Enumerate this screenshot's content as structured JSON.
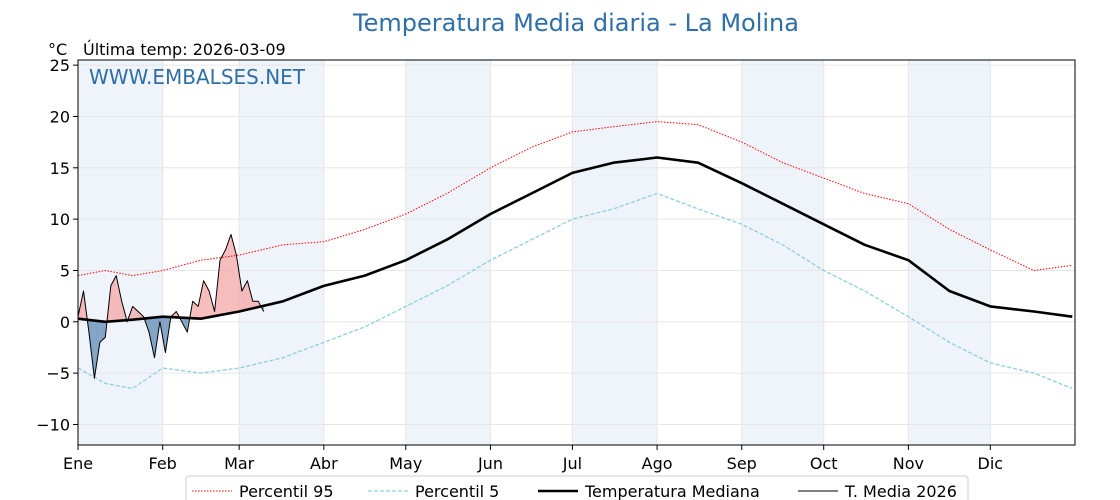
{
  "chart_data": {
    "type": "line",
    "title": "Temperatura Media diaria - La Molina",
    "unit_label": "°C",
    "last_temp_label": "Última temp: 2026-03-09",
    "watermark": "WWW.EMBALSES.NET",
    "ylim": [
      -12,
      25.5
    ],
    "yticks": [
      -10,
      -5,
      0,
      5,
      10,
      15,
      20,
      25
    ],
    "ytick_labels": [
      "−10",
      "−5",
      "0",
      "5",
      "10",
      "15",
      "20",
      "25"
    ],
    "xlim": [
      0,
      365
    ],
    "month_starts": [
      0,
      31,
      59,
      90,
      120,
      151,
      181,
      212,
      243,
      273,
      304,
      334
    ],
    "month_labels": [
      "Ene",
      "Feb",
      "Mar",
      "Abr",
      "May",
      "Jun",
      "Jul",
      "Ago",
      "Sep",
      "Oct",
      "Nov",
      "Dic"
    ],
    "shaded_months": [
      0,
      2,
      4,
      6,
      8,
      10
    ],
    "grid": true,
    "legend": {
      "placement": "bottom-center"
    },
    "series": [
      {
        "name": "Percentil 95",
        "color": "#ff0000",
        "style": "dotted",
        "x": [
          0,
          10,
          20,
          31,
          45,
          59,
          75,
          90,
          105,
          120,
          135,
          151,
          166,
          181,
          196,
          212,
          227,
          243,
          258,
          273,
          288,
          304,
          319,
          334,
          350,
          364
        ],
        "y": [
          4.5,
          5.0,
          4.5,
          5.0,
          6.0,
          6.5,
          7.5,
          7.8,
          9.0,
          10.5,
          12.5,
          15.0,
          17.0,
          18.5,
          19.0,
          19.5,
          19.2,
          17.5,
          15.5,
          14.0,
          12.5,
          11.5,
          9.0,
          7.0,
          5.0,
          5.5
        ]
      },
      {
        "name": "Percentil 5",
        "color": "#8fcde0",
        "style": "dashed",
        "x": [
          0,
          10,
          20,
          31,
          45,
          59,
          75,
          90,
          105,
          120,
          135,
          151,
          166,
          181,
          196,
          212,
          227,
          243,
          258,
          273,
          288,
          304,
          319,
          334,
          350,
          364
        ],
        "y": [
          -4.5,
          -6.0,
          -6.5,
          -4.5,
          -5.0,
          -4.5,
          -3.5,
          -2.0,
          -0.5,
          1.5,
          3.5,
          6.0,
          8.0,
          10.0,
          11.0,
          12.5,
          11.0,
          9.5,
          7.5,
          5.0,
          3.0,
          0.5,
          -2.0,
          -4.0,
          -5.0,
          -6.5
        ]
      },
      {
        "name": "Temperatura Mediana",
        "color": "#000000",
        "style": "solid-thick",
        "x": [
          0,
          10,
          20,
          31,
          45,
          59,
          75,
          90,
          105,
          120,
          135,
          151,
          166,
          181,
          196,
          212,
          227,
          243,
          258,
          273,
          288,
          304,
          319,
          334,
          350,
          364
        ],
        "y": [
          0.3,
          0.0,
          0.2,
          0.5,
          0.3,
          1.0,
          2.0,
          3.5,
          4.5,
          6.0,
          8.0,
          10.5,
          12.5,
          14.5,
          15.5,
          16.0,
          15.5,
          13.5,
          11.5,
          9.5,
          7.5,
          6.0,
          3.0,
          1.5,
          1.0,
          0.5
        ]
      },
      {
        "name": "T. Media 2026",
        "color": "#000000",
        "style": "solid-thin",
        "x": [
          0,
          2,
          4,
          6,
          8,
          10,
          12,
          14,
          16,
          18,
          20,
          22,
          24,
          26,
          28,
          30,
          32,
          34,
          36,
          38,
          40,
          42,
          44,
          46,
          48,
          50,
          52,
          54,
          56,
          58,
          60,
          62,
          64,
          66,
          68
        ],
        "y": [
          0.5,
          3.0,
          -1.0,
          -5.5,
          -2.0,
          -1.5,
          3.5,
          4.5,
          2.0,
          0.0,
          1.5,
          1.0,
          0.5,
          -1.0,
          -3.5,
          0.0,
          -3.0,
          0.5,
          1.0,
          0.0,
          -1.0,
          2.0,
          1.5,
          4.0,
          3.0,
          1.0,
          6.0,
          7.0,
          8.5,
          6.5,
          3.0,
          4.0,
          2.0,
          2.0,
          1.0
        ]
      }
    ]
  }
}
